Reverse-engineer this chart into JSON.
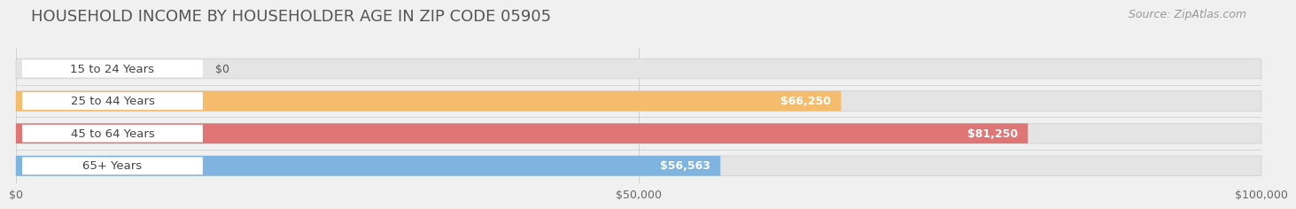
{
  "title": "HOUSEHOLD INCOME BY HOUSEHOLDER AGE IN ZIP CODE 05905",
  "source": "Source: ZipAtlas.com",
  "categories": [
    "15 to 24 Years",
    "25 to 44 Years",
    "45 to 64 Years",
    "65+ Years"
  ],
  "values": [
    0,
    66250,
    81250,
    56563
  ],
  "bar_colors": [
    "#f4a0bb",
    "#f5bc6e",
    "#e07575",
    "#80b4e0"
  ],
  "xlim": [
    0,
    100000
  ],
  "xticks": [
    0,
    50000,
    100000
  ],
  "xtick_labels": [
    "$0",
    "$50,000",
    "$100,000"
  ],
  "background_color": "#f0f0f0",
  "bar_background": "#e4e4e4",
  "title_fontsize": 13,
  "source_fontsize": 9,
  "label_fontsize": 9.5,
  "value_fontsize": 9,
  "tick_fontsize": 9
}
